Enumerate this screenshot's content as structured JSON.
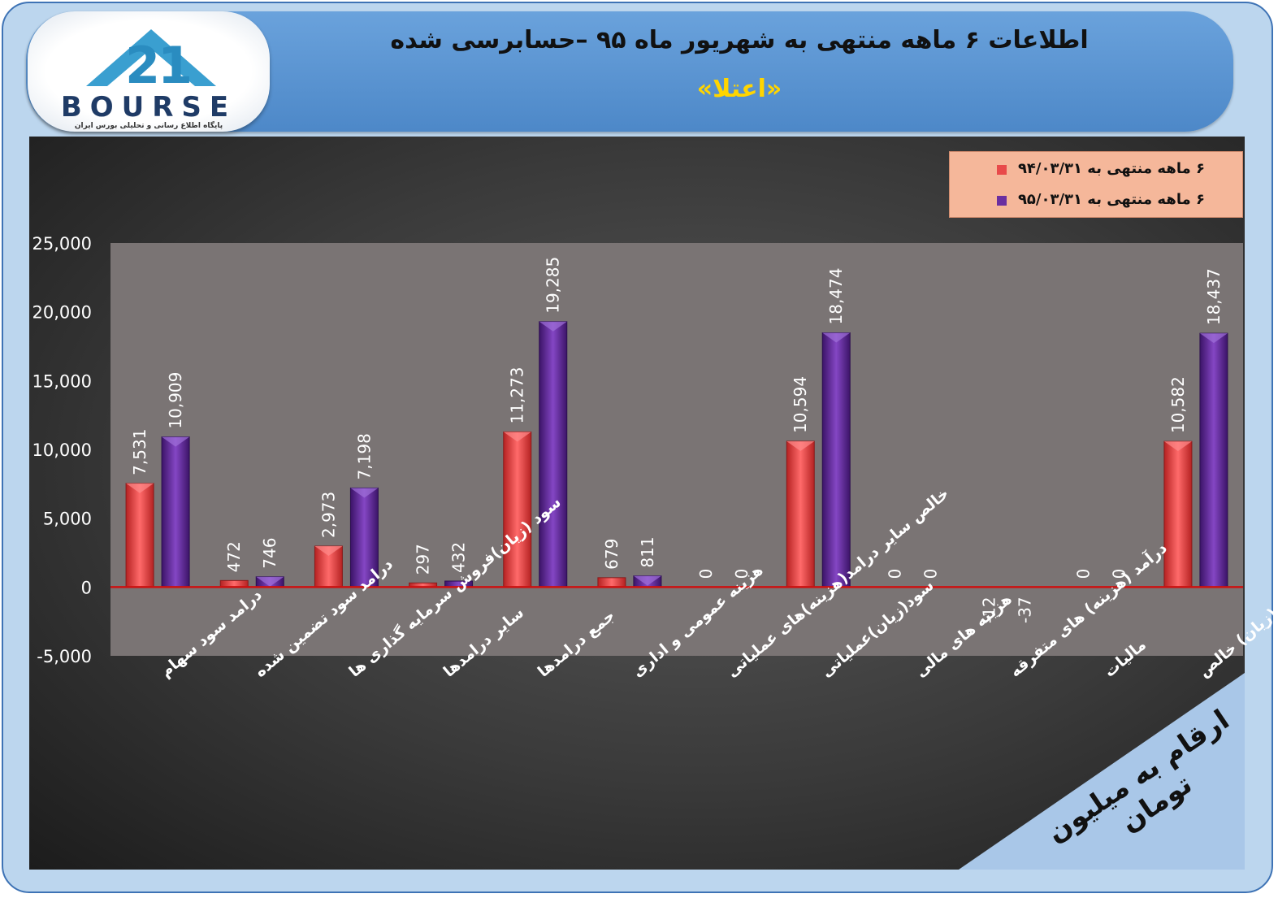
{
  "header": {
    "title": "اطلاعات ۶ ماهه منتهی به شهریور ماه ۹۵ –حسابرسی شده",
    "subtitle": "«اعتلا»"
  },
  "logo": {
    "text": "BOURSE",
    "tagline": "پایگاه اطلاع رسانی و تحلیلی بورس ایران"
  },
  "unit_note": "ارقام به میلیون تومان",
  "colors": {
    "series1": "#e84a4a",
    "series2": "#6a2fa0",
    "plot_bg": "#7a7474",
    "zero_line": "#cc1111"
  },
  "chart_data": {
    "type": "bar",
    "title": "",
    "xlabel": "",
    "ylabel": "",
    "ylim": [
      -5000,
      25000
    ],
    "yticks": [
      "25,000",
      "20,000",
      "15,000",
      "10,000",
      "5,000",
      "0",
      "-5,000"
    ],
    "ytick_values": [
      25000,
      20000,
      15000,
      10000,
      5000,
      0,
      -5000
    ],
    "grid": false,
    "legend_position": "top-right",
    "categories": [
      "درامد سود سهام",
      "درامد سود تضمین شده",
      "سود (زیان)فروش سرمایه گذاری ها",
      "سایر درامدها",
      "جمع درامدها",
      "هزینه عمومی و اداری",
      "خالص سایر درامد(هزینه)های عملیاتی",
      "سود(زیان)عملیاتی",
      "هزینه های مالی",
      "درآمد (هزینه) های متفرقه",
      "مالیات",
      "سود(زیان) خالص"
    ],
    "series": [
      {
        "name": "۶ ماهه منتهی به ۹۴/۰۳/۳۱",
        "values": [
          7531,
          472,
          2973,
          297,
          11273,
          679,
          0,
          10594,
          0,
          -12,
          0,
          10582
        ],
        "labels": [
          "7,531",
          "472",
          "2,973",
          "297",
          "11,273",
          "679",
          "0",
          "10,594",
          "0",
          "-12",
          "0",
          "10,582"
        ]
      },
      {
        "name": "۶ ماهه منتهی به ۹۵/۰۳/۳۱",
        "values": [
          10909,
          746,
          7198,
          432,
          19285,
          811,
          0,
          18474,
          0,
          -37,
          0,
          18437
        ],
        "labels": [
          "10,909",
          "746",
          "7,198",
          "432",
          "19,285",
          "811",
          "0",
          "18,474",
          "0",
          "-37",
          "0",
          "18,437"
        ]
      }
    ]
  }
}
